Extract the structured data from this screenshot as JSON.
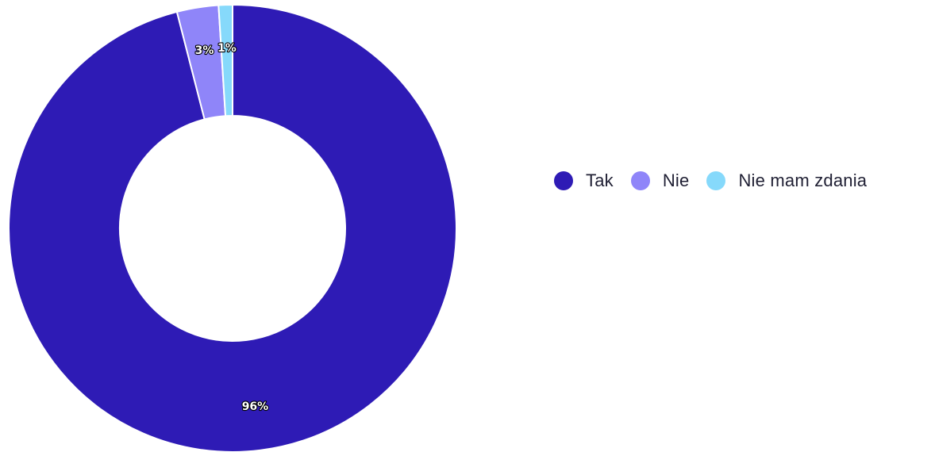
{
  "chart_data": {
    "type": "pie",
    "title": "",
    "categories": [
      "Tak",
      "Nie",
      "Nie mam zdania"
    ],
    "values": [
      96,
      3,
      1
    ],
    "labels": [
      "96%",
      "3%",
      "1%"
    ],
    "colors": [
      "#2e1bb5",
      "#8f85f9",
      "#86d9fb"
    ],
    "donut": true,
    "legend_position": "right"
  },
  "legend": {
    "items": [
      {
        "label": "Tak",
        "color": "#2e1bb5"
      },
      {
        "label": "Nie",
        "color": "#8f85f9"
      },
      {
        "label": "Nie mam zdania",
        "color": "#86d9fb"
      }
    ]
  }
}
